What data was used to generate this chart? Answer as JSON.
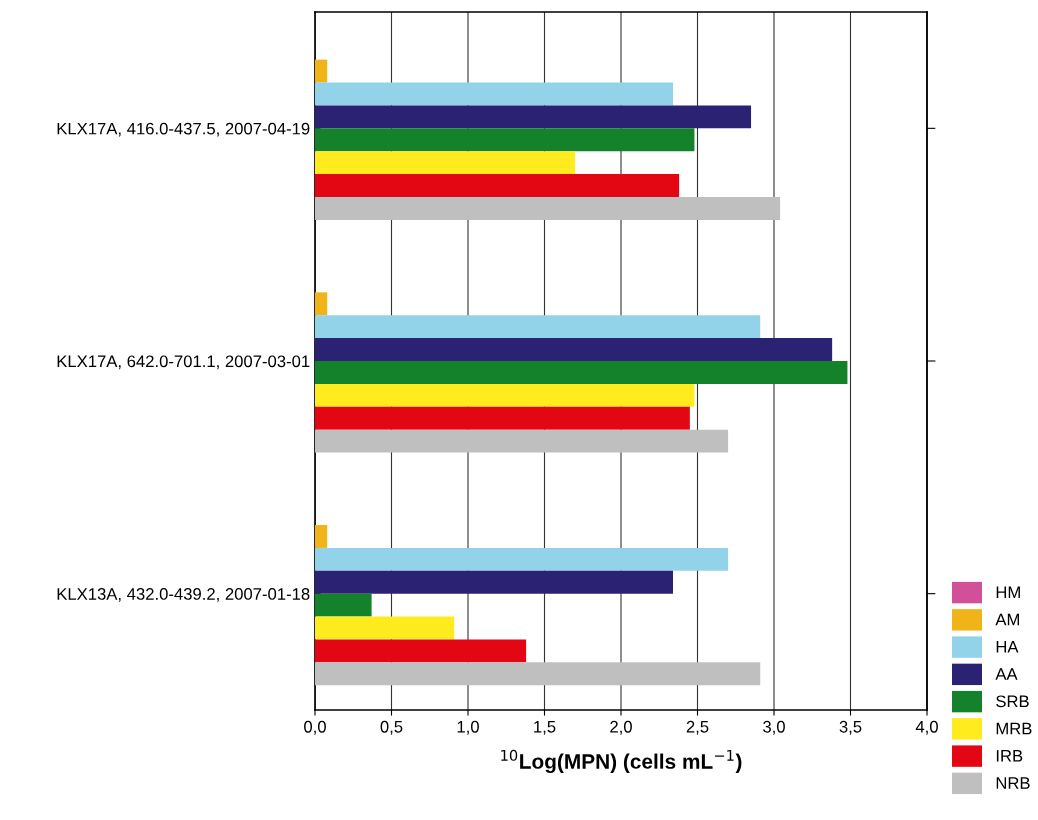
{
  "chart_data": {
    "type": "bar",
    "orientation": "horizontal",
    "xlabel": "$^{10}$Log(MPN) (cells mL$^{−1}$)",
    "categories": [
      "KLX17A, 416.0-437.5, 2007-04-19",
      "KLX17A, 642.0-701.1, 2007-03-01",
      "KLX13A, 432.0-439.2, 2007-01-18"
    ],
    "series": [
      {
        "name": "HM",
        "color": "#d24f9a",
        "values": [
          null,
          null,
          null
        ]
      },
      {
        "name": "AM",
        "color": "#f0b419",
        "values": [
          0.08,
          0.08,
          0.08
        ]
      },
      {
        "name": "HA",
        "color": "#93d3ea",
        "values": [
          2.34,
          2.91,
          2.7
        ]
      },
      {
        "name": "AA",
        "color": "#2b2273",
        "values": [
          2.85,
          3.38,
          2.34
        ]
      },
      {
        "name": "SRB",
        "color": "#13822b",
        "values": [
          2.48,
          3.48,
          0.37
        ]
      },
      {
        "name": "MRB",
        "color": "#ffeb1e",
        "values": [
          1.7,
          2.48,
          0.91
        ]
      },
      {
        "name": "IRB",
        "color": "#e30613",
        "values": [
          2.38,
          2.45,
          1.38
        ]
      },
      {
        "name": "NRB",
        "color": "#bfbfbf",
        "values": [
          3.04,
          2.7,
          2.91
        ]
      }
    ],
    "xlim": [
      0,
      4
    ],
    "xticks": [
      {
        "value": 0,
        "label": "0,0"
      },
      {
        "value": 0.5,
        "label": "0,5"
      },
      {
        "value": 1,
        "label": "1,0"
      },
      {
        "value": 1.5,
        "label": "1,5"
      },
      {
        "value": 2,
        "label": "2,0"
      },
      {
        "value": 2.5,
        "label": "2,5"
      },
      {
        "value": 3,
        "label": "3,0"
      },
      {
        "value": 3.5,
        "label": "3,5"
      },
      {
        "value": 4,
        "label": "4,0"
      }
    ],
    "grid": "x",
    "legend": "bottom right"
  }
}
